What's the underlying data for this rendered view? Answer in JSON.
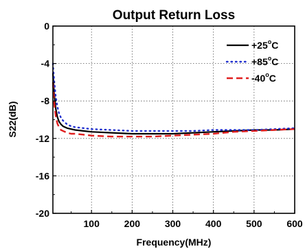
{
  "chart_data": {
    "type": "line",
    "title": "Output Return Loss",
    "xlabel": "Frequency(MHz)",
    "ylabel": "S22(dB)",
    "xlim": [
      5,
      600
    ],
    "ylim": [
      -20,
      0
    ],
    "x_ticks": [
      100,
      200,
      300,
      400,
      500,
      600
    ],
    "y_ticks": [
      0,
      -4,
      -8,
      -12,
      -16,
      -20
    ],
    "x_tick_labels": [
      "100",
      "200",
      "300",
      "400",
      "500",
      "600"
    ],
    "y_tick_labels": [
      "0",
      "-4",
      "-8",
      "-12",
      "-16",
      "-20"
    ],
    "grid": true,
    "legend_position": "top-right",
    "series": [
      {
        "name": "+25",
        "name_sup": "o",
        "name_unit": "C",
        "color": "#000000",
        "dash": "solid",
        "x": [
          5,
          8,
          12,
          16,
          20,
          25,
          30,
          40,
          50,
          60,
          80,
          100,
          150,
          200,
          250,
          300,
          350,
          400,
          450,
          500,
          550,
          600
        ],
        "y": [
          -5.0,
          -7.2,
          -8.8,
          -9.7,
          -10.2,
          -10.5,
          -10.7,
          -10.9,
          -11.0,
          -11.1,
          -11.2,
          -11.3,
          -11.4,
          -11.5,
          -11.5,
          -11.5,
          -11.4,
          -11.3,
          -11.2,
          -11.1,
          -11.1,
          -11.0
        ]
      },
      {
        "name": "+85",
        "name_sup": "o",
        "name_unit": "C",
        "color": "#1f2fcf",
        "dash": "dot",
        "x": [
          5,
          8,
          12,
          16,
          20,
          25,
          30,
          40,
          50,
          60,
          80,
          100,
          150,
          200,
          250,
          300,
          350,
          400,
          450,
          500,
          550,
          600
        ],
        "y": [
          -4.0,
          -5.8,
          -7.5,
          -8.6,
          -9.3,
          -9.8,
          -10.1,
          -10.5,
          -10.7,
          -10.8,
          -10.9,
          -11.0,
          -11.1,
          -11.2,
          -11.2,
          -11.2,
          -11.2,
          -11.1,
          -11.1,
          -11.1,
          -11.0,
          -10.9
        ]
      },
      {
        "name": "-40",
        "name_sup": "o",
        "name_unit": "C",
        "color": "#e01f1f",
        "dash": "dash",
        "x": [
          5,
          8,
          12,
          16,
          20,
          25,
          30,
          40,
          50,
          60,
          80,
          100,
          150,
          200,
          250,
          300,
          350,
          400,
          450,
          500,
          550,
          600
        ],
        "y": [
          -6.0,
          -8.2,
          -9.6,
          -10.4,
          -10.8,
          -11.1,
          -11.2,
          -11.4,
          -11.5,
          -11.5,
          -11.6,
          -11.7,
          -11.8,
          -11.8,
          -11.8,
          -11.7,
          -11.6,
          -11.5,
          -11.3,
          -11.2,
          -11.1,
          -11.0
        ]
      }
    ]
  }
}
